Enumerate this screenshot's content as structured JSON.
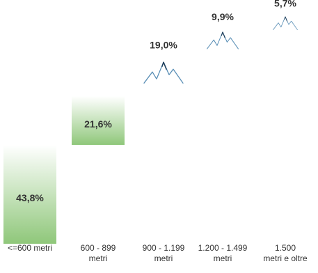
{
  "chart_data": {
    "type": "bar",
    "categories": [
      [
        "<=600 metri"
      ],
      [
        "600 - 899",
        "metri"
      ],
      [
        "900 - 1.199",
        "metri"
      ],
      [
        "1.200 - 1.499",
        "metri"
      ],
      [
        "1.500",
        "metri e oltre"
      ]
    ],
    "values": [
      43.8,
      21.6,
      19.0,
      9.9,
      5.7
    ],
    "value_labels": [
      "43,8%",
      "21,6%",
      "19,0%",
      "9,9%",
      "5,7%"
    ],
    "title": "",
    "xlabel": "",
    "ylabel": "",
    "bar_color": "#7fbf6a",
    "bar_color_light": "#ffffff",
    "mountain_color": "#4f88b3",
    "grid": false,
    "legend": "none"
  }
}
